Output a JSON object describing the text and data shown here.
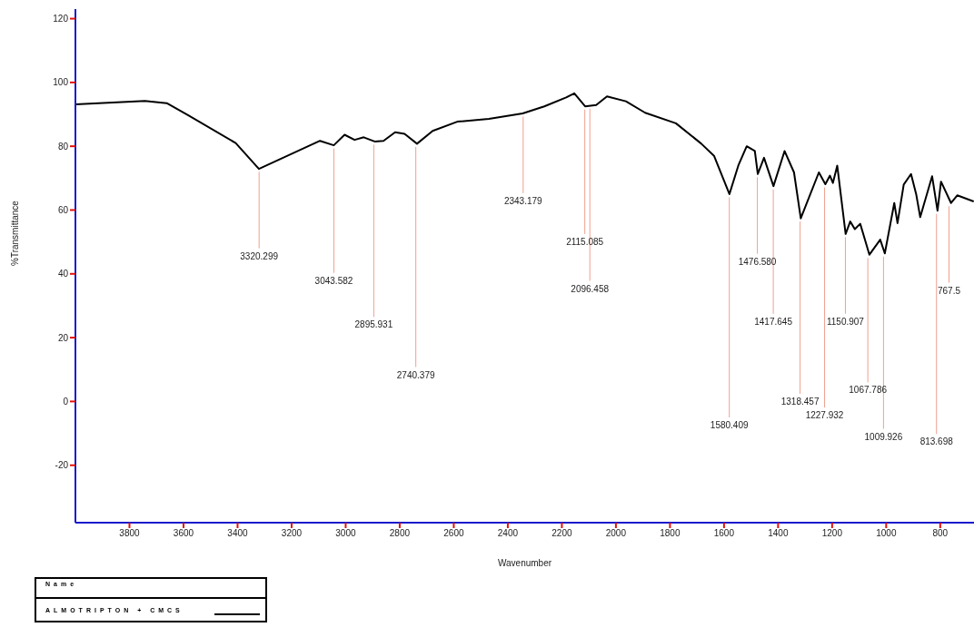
{
  "chart_data": {
    "type": "line",
    "xlabel": "Wavenumber",
    "ylabel": "%Transmittance",
    "legend_title": "Name",
    "legend": "bottom left",
    "grid": false,
    "marker": "none",
    "line_style": "solid",
    "xlim": [
      4000,
      675
    ],
    "xticks": [
      3800,
      3600,
      3400,
      3200,
      3000,
      2800,
      2600,
      2400,
      2200,
      2000,
      1800,
      1600,
      1400,
      1200,
      1000,
      800
    ],
    "ylim": [
      -38,
      123
    ],
    "yticks": [
      -20,
      0,
      20,
      40,
      60,
      80,
      100,
      120
    ],
    "x": [
      4000,
      3743,
      3662,
      3582,
      3407,
      3321,
      3095,
      3044,
      3004,
      2967,
      2933,
      2893,
      2860,
      2817,
      2782,
      2736,
      2678,
      2587,
      2470,
      2345,
      2265,
      2184,
      2154,
      2114,
      2073,
      2033,
      1963,
      1892,
      1778,
      1684,
      1637,
      1580,
      1546,
      1516,
      1486,
      1475,
      1452,
      1417,
      1376,
      1341,
      1316,
      1249,
      1225,
      1208,
      1197,
      1181,
      1150,
      1133,
      1116,
      1096,
      1062,
      1022,
      1005,
      970,
      958,
      935,
      908,
      889,
      874,
      830,
      810,
      797,
      760,
      737,
      676
    ],
    "series": [
      {
        "name": "ALMOTRIPTON + CMCS",
        "color": "#000000",
        "values": [
          93.1,
          94.2,
          93.5,
          89.7,
          81,
          72.9,
          81.7,
          80.3,
          83.6,
          82,
          82.8,
          81.5,
          81.7,
          84.4,
          83.9,
          80.8,
          84.8,
          87.7,
          88.6,
          90.3,
          92.5,
          95.3,
          96.6,
          92.5,
          92.9,
          95.6,
          94.1,
          90.5,
          87.2,
          80.8,
          77,
          65,
          74.2,
          80,
          78.5,
          71.3,
          76.4,
          67.5,
          78.5,
          71.8,
          57.4,
          71.8,
          68.1,
          70.8,
          68.5,
          73.9,
          52.5,
          56.4,
          54,
          55.7,
          46,
          50.7,
          46.4,
          62.2,
          55.9,
          68,
          71.3,
          65,
          57.8,
          70.6,
          59.8,
          68.9,
          62.2,
          64.6,
          62.7
        ]
      }
    ],
    "annotations": [
      {
        "text": "3320.299",
        "x": 3320.299,
        "y": 73
      },
      {
        "text": "3043.582",
        "x": 3043.582,
        "y": 80.3
      },
      {
        "text": "2895.931",
        "x": 2895.931,
        "y": 81.5
      },
      {
        "text": "2740.379",
        "x": 2740.379,
        "y": 80.8
      },
      {
        "text": "2343.179",
        "x": 2343.179,
        "y": 90.3
      },
      {
        "text": "2115.085",
        "x": 2115.085,
        "y": 92.5
      },
      {
        "text": "2096.458",
        "x": 2096.458,
        "y": 92.8
      },
      {
        "text": "1580.409",
        "x": 1580.409,
        "y": 65
      },
      {
        "text": "1476.580",
        "x": 1476.58,
        "y": 71.3
      },
      {
        "text": "1417.645",
        "x": 1417.645,
        "y": 67.5
      },
      {
        "text": "1318.457",
        "x": 1318.457,
        "y": 57.4
      },
      {
        "text": "1227.932",
        "x": 1227.932,
        "y": 68.1
      },
      {
        "text": "1150.907",
        "x": 1150.907,
        "y": 52.5
      },
      {
        "text": "1067.786",
        "x": 1067.786,
        "y": 46
      },
      {
        "text": "1009.926",
        "x": 1009.926,
        "y": 46.4
      },
      {
        "text": "813.698",
        "x": 813.698,
        "y": 59.8
      },
      {
        "text": "767.5",
        "x": 767.5,
        "y": 62.2
      }
    ]
  }
}
